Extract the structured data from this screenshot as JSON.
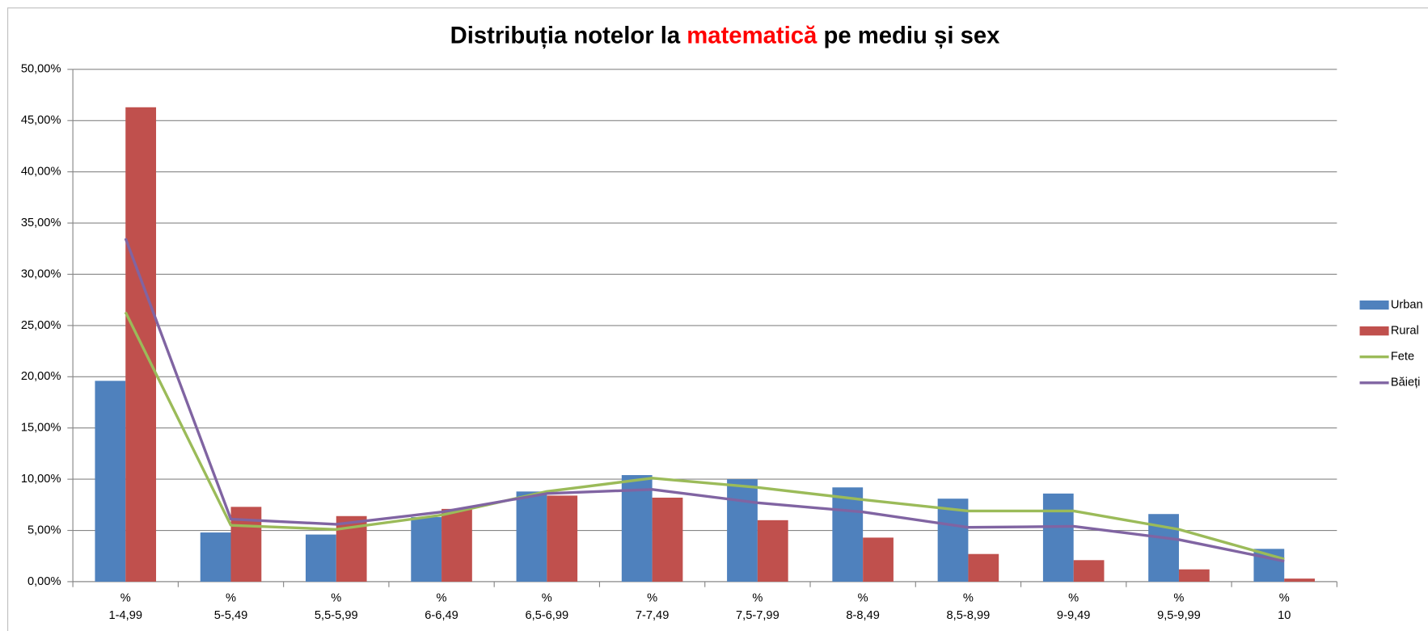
{
  "chart_data": {
    "type": "bar",
    "title_parts": [
      {
        "text": "Distribuția notelor la ",
        "color": "#000000"
      },
      {
        "text": "matematică",
        "color": "#ff0000"
      },
      {
        "text": " pe mediu și sex",
        "color": "#000000"
      }
    ],
    "categories": [
      "%\n1-4,99",
      "%\n5-5,49",
      "%\n5,5-5,99",
      "%\n6-6,49",
      "%\n6,5-6,99",
      "%\n7-7,49",
      "%\n7,5-7,99",
      "%\n8-8,49",
      "%\n8,5-8,99",
      "%\n9-9,49",
      "%\n9,5-9,99",
      "%\n10"
    ],
    "series": [
      {
        "name": "Urban",
        "type": "bar",
        "color": "#4f81bd",
        "values": [
          19.6,
          4.8,
          4.6,
          6.3,
          8.8,
          10.4,
          10.0,
          9.2,
          8.1,
          8.6,
          6.6,
          3.2
        ]
      },
      {
        "name": "Rural",
        "type": "bar",
        "color": "#c0504d",
        "values": [
          46.3,
          7.3,
          6.4,
          7.1,
          8.4,
          8.2,
          6.0,
          4.3,
          2.7,
          2.1,
          1.2,
          0.3
        ]
      },
      {
        "name": "Fete",
        "type": "line",
        "color": "#9bbb59",
        "values": [
          26.3,
          5.5,
          5.1,
          6.5,
          8.8,
          10.1,
          9.2,
          8.0,
          6.9,
          6.9,
          5.1,
          2.2
        ]
      },
      {
        "name": "Băieți",
        "type": "line",
        "color": "#8064a2",
        "values": [
          33.5,
          6.1,
          5.6,
          6.8,
          8.6,
          9.0,
          7.7,
          6.8,
          5.3,
          5.4,
          4.1,
          2.0
        ]
      }
    ],
    "ylim": [
      0,
      50
    ],
    "yticks": [
      {
        "value": 0,
        "label": "0,00%"
      },
      {
        "value": 5,
        "label": "5,00%"
      },
      {
        "value": 10,
        "label": "10,00%"
      },
      {
        "value": 15,
        "label": "15,00%"
      },
      {
        "value": 20,
        "label": "20,00%"
      },
      {
        "value": 25,
        "label": "25,00%"
      },
      {
        "value": 30,
        "label": "30,00%"
      },
      {
        "value": 35,
        "label": "35,00%"
      },
      {
        "value": 40,
        "label": "40,00%"
      },
      {
        "value": 45,
        "label": "45,00%"
      },
      {
        "value": 50,
        "label": "50,00%"
      }
    ],
    "grid": true,
    "legend": "right"
  }
}
